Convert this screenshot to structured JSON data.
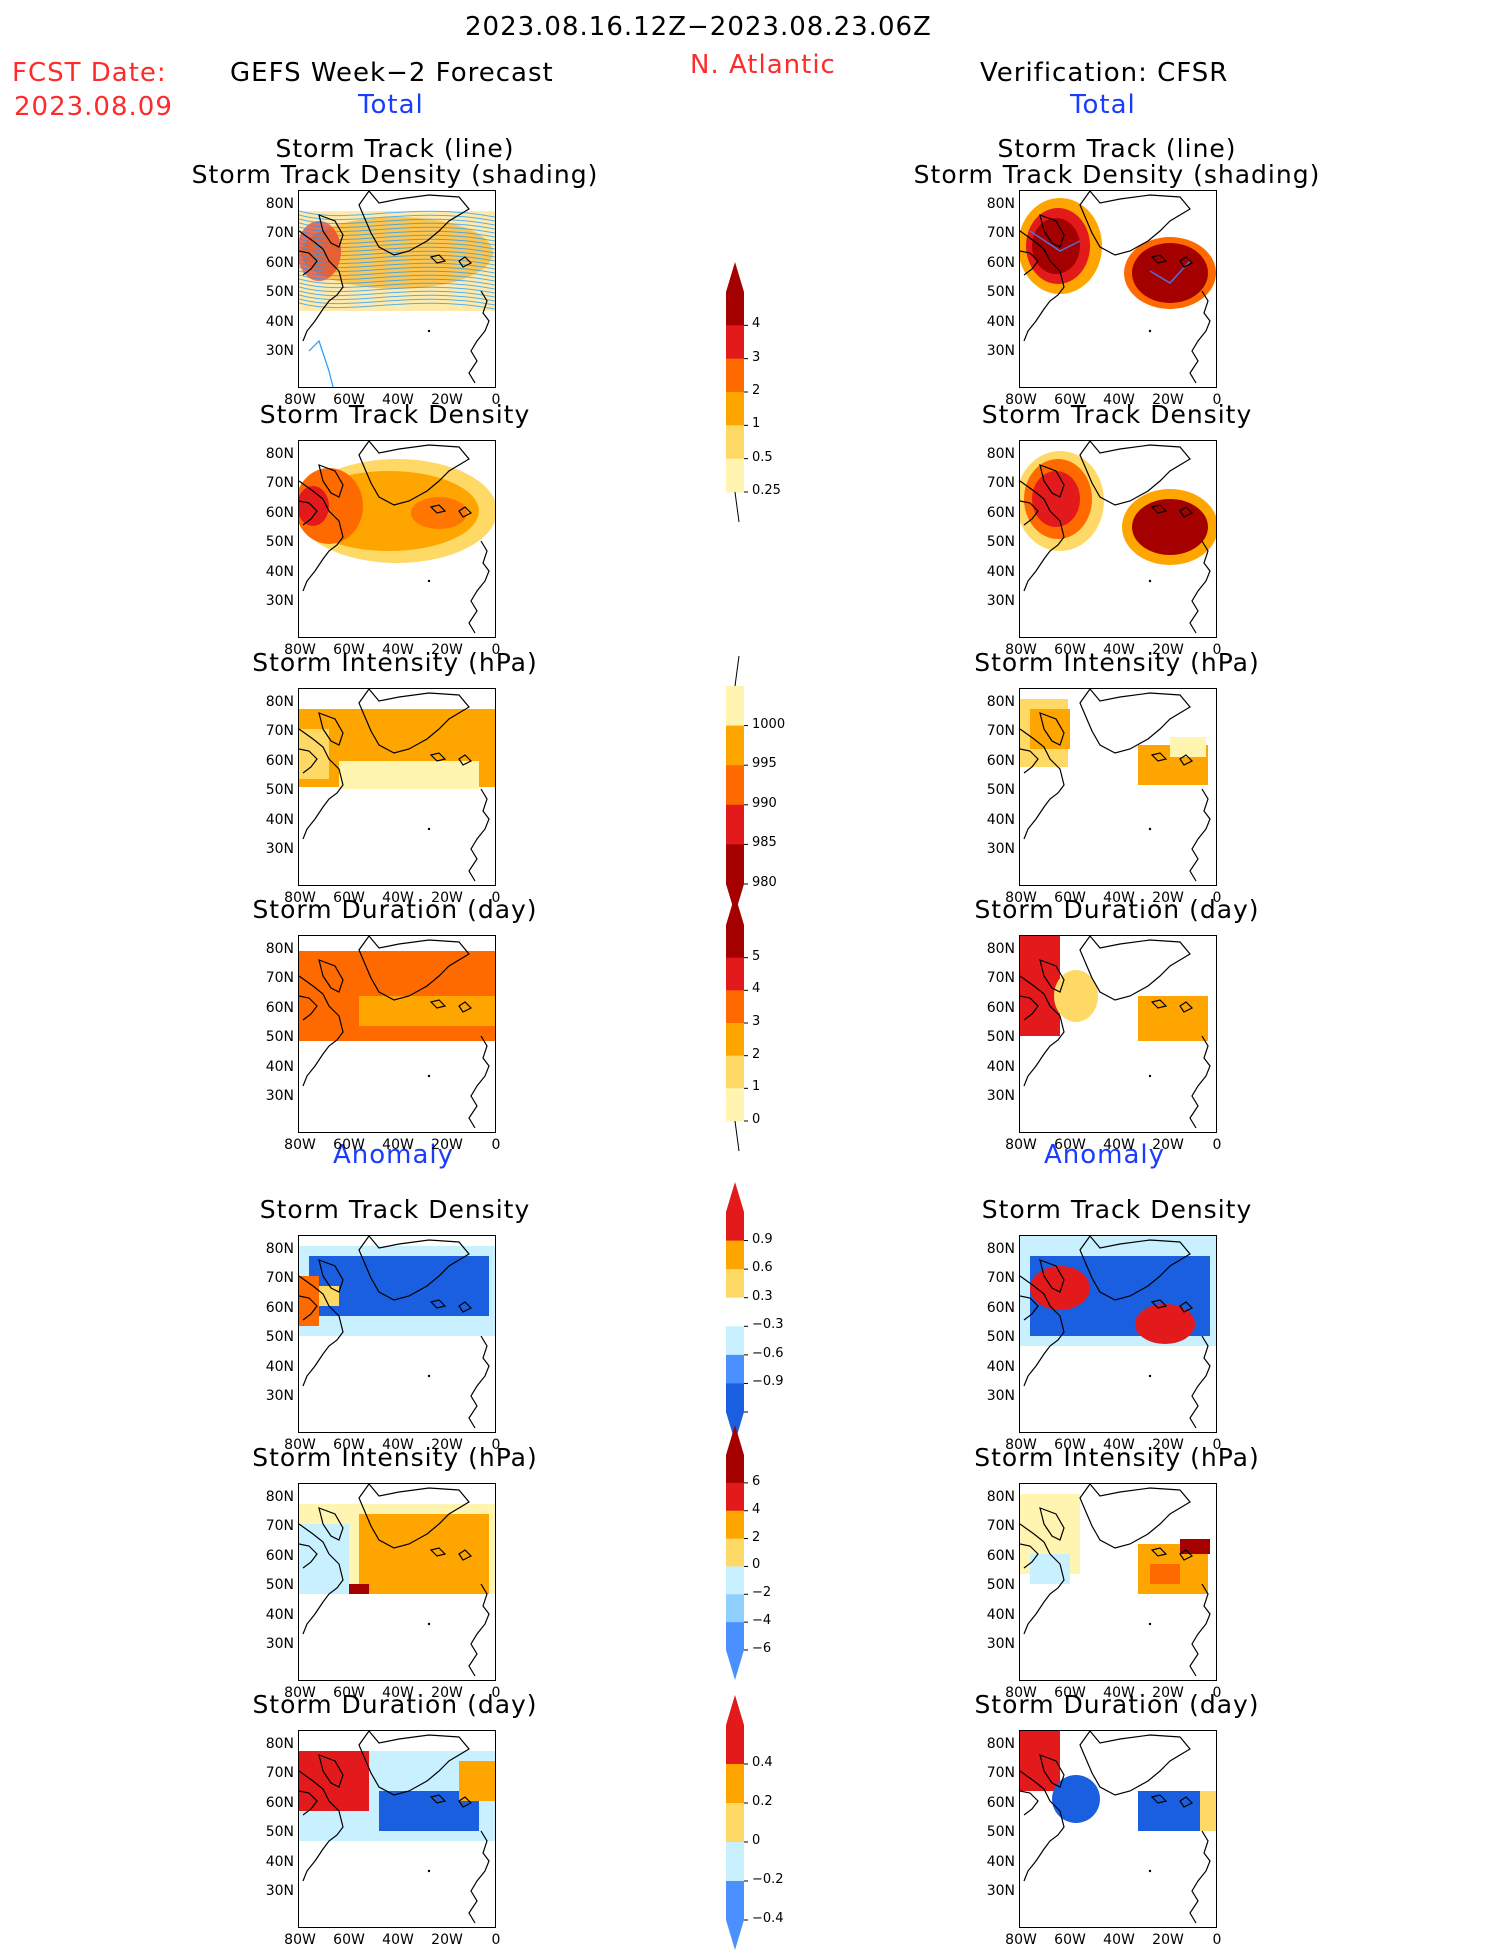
{
  "header": {
    "date_range": "2023.08.16.12Z−2023.08.23.06Z",
    "fcst_label": "FCST Date:",
    "fcst_date": "2023.08.09",
    "left_title": "GEFS Week−2 Forecast",
    "region": "N. Atlantic",
    "right_title": "Verification: CFSR"
  },
  "sections": {
    "total": "Total",
    "anomaly": "Anomaly"
  },
  "panel_titles": {
    "track_line": "Storm Track (line)",
    "track_shading": "Storm Track Density (shading)",
    "density": "Storm Track Density",
    "intensity": "Storm Intensity (hPa)",
    "duration": "Storm Duration (day)"
  },
  "axes": {
    "lat": [
      "80N",
      "70N",
      "60N",
      "50N",
      "40N",
      "30N"
    ],
    "lon": [
      "80W",
      "60W",
      "40W",
      "20W",
      "0"
    ]
  },
  "colorbars": {
    "density_total": [
      "4",
      "3",
      "2",
      "1",
      "0.5",
      "0.25"
    ],
    "intensity_total": [
      "1000",
      "995",
      "990",
      "985",
      "980"
    ],
    "duration_total": [
      "5",
      "4",
      "3",
      "2",
      "1",
      "0"
    ],
    "density_anom": [
      "0.9",
      "0.6",
      "0.3",
      "−0.3",
      "−0.6",
      "−0.9"
    ],
    "intensity_anom": [
      "6",
      "4",
      "2",
      "0",
      "−2",
      "−4",
      "−6"
    ],
    "duration_anom": [
      "0.4",
      "0.2",
      "0",
      "−0.2",
      "−0.4"
    ]
  },
  "colors": {
    "warm": [
      "#fff5b0",
      "#ffd966",
      "#ffa500",
      "#ff6a00",
      "#e31a1c",
      "#a50000"
    ],
    "cool": [
      "#c8f0ff",
      "#8fd0ff",
      "#4a90ff",
      "#1a5fe0"
    ],
    "title_red": "#ff2a2a",
    "title_blue": "#1a3cff"
  }
}
